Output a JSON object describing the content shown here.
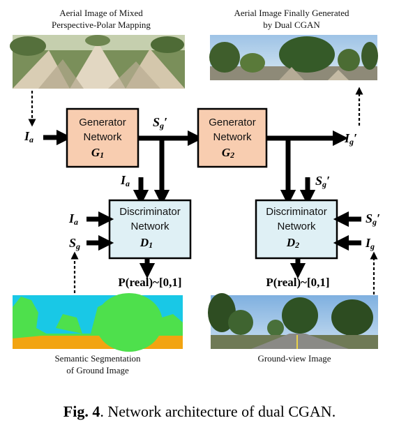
{
  "images": {
    "top_left_caption": [
      "Aerial Image of Mixed",
      "Perspective-Polar Mapping"
    ],
    "top_right_caption": [
      "Aerial Image Finally Generated",
      "by Dual CGAN"
    ],
    "bottom_left_caption": [
      "Semantic Segmentation",
      "of  Ground Image"
    ],
    "bottom_right_caption": "Ground-view Image"
  },
  "boxes": {
    "g1": {
      "line1": "Generator",
      "line2": "Network",
      "sym": "G",
      "sub": "1",
      "fill": "#f8cdb0"
    },
    "g2": {
      "line1": "Generator",
      "line2": "Network",
      "sym": "G",
      "sub": "2",
      "fill": "#f8cdb0"
    },
    "d1": {
      "line1": "Discriminator",
      "line2": "Network",
      "sym": "D",
      "sub": "1",
      "fill": "#dff0f5"
    },
    "d2": {
      "line1": "Discriminator",
      "line2": "Network",
      "sym": "D",
      "sub": "2",
      "fill": "#dff0f5"
    }
  },
  "symbols": {
    "ia": {
      "base": "I",
      "sub": "a"
    },
    "sg_prime": {
      "base": "S",
      "sub": "g",
      "mark": "′"
    },
    "ig_prime": {
      "base": "I",
      "sub": "g",
      "mark": "′"
    },
    "sg": {
      "base": "S",
      "sub": "g"
    },
    "ig": {
      "base": "I",
      "sub": "g"
    }
  },
  "outputs": {
    "d1": "P(real)~[0,1]",
    "d2": "P(real)~[0,1]"
  },
  "caption": {
    "label": "Fig. 4",
    "text": ". Network architecture of dual CGAN."
  }
}
